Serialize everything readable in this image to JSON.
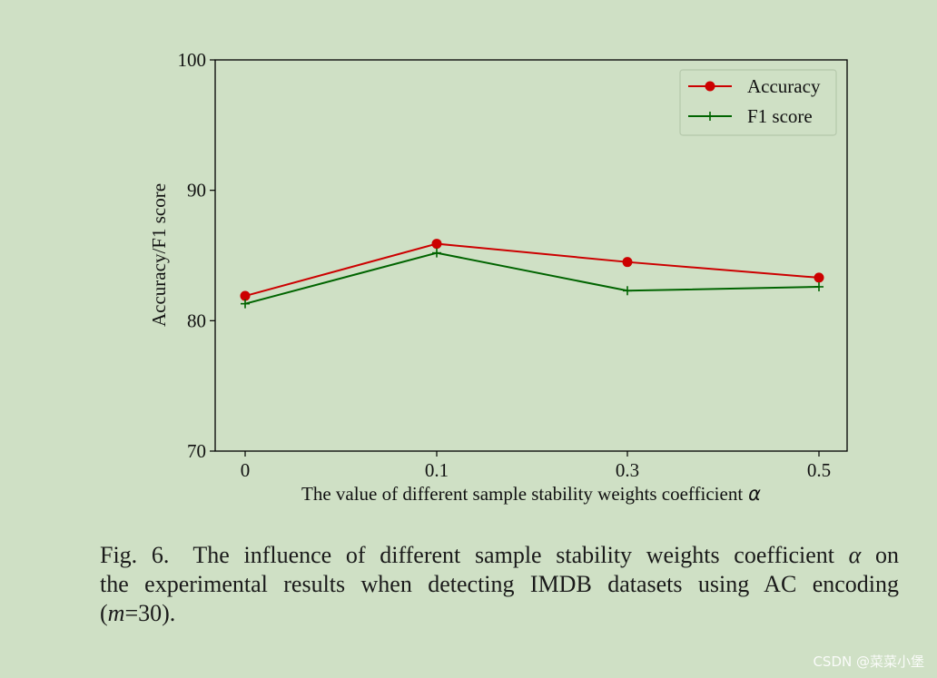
{
  "chart_data": {
    "type": "line",
    "x_categories": [
      "0",
      "0.1",
      "0.3",
      "0.5"
    ],
    "ylim": [
      70,
      100
    ],
    "yticks": [
      70,
      80,
      90,
      100
    ],
    "ylabel": "Accuracy/F1 score",
    "xlabel": "The value of different sample stability weights coefficient",
    "xlabel_symbol": "α",
    "legend_position": "top-right",
    "series": [
      {
        "name": "Accuracy",
        "values": [
          81.9,
          85.9,
          84.5,
          83.3
        ],
        "color": "#cc0000",
        "marker": "circle"
      },
      {
        "name": "F1 score",
        "values": [
          81.3,
          85.2,
          82.3,
          82.6
        ],
        "color": "#006400",
        "marker": "plus"
      }
    ]
  },
  "caption": {
    "fig_label": "Fig. 6.",
    "line1_text": "The influence of different sample stability weights coefficient",
    "line1_symbol": "α",
    "line1_tail": "on",
    "line2": "the experimental results when detecting IMDB datasets using AC encoding",
    "line3_open": "(",
    "line3_var": "m",
    "line3_rest": "=30)."
  },
  "watermark": "CSDN @菜菜小堡"
}
